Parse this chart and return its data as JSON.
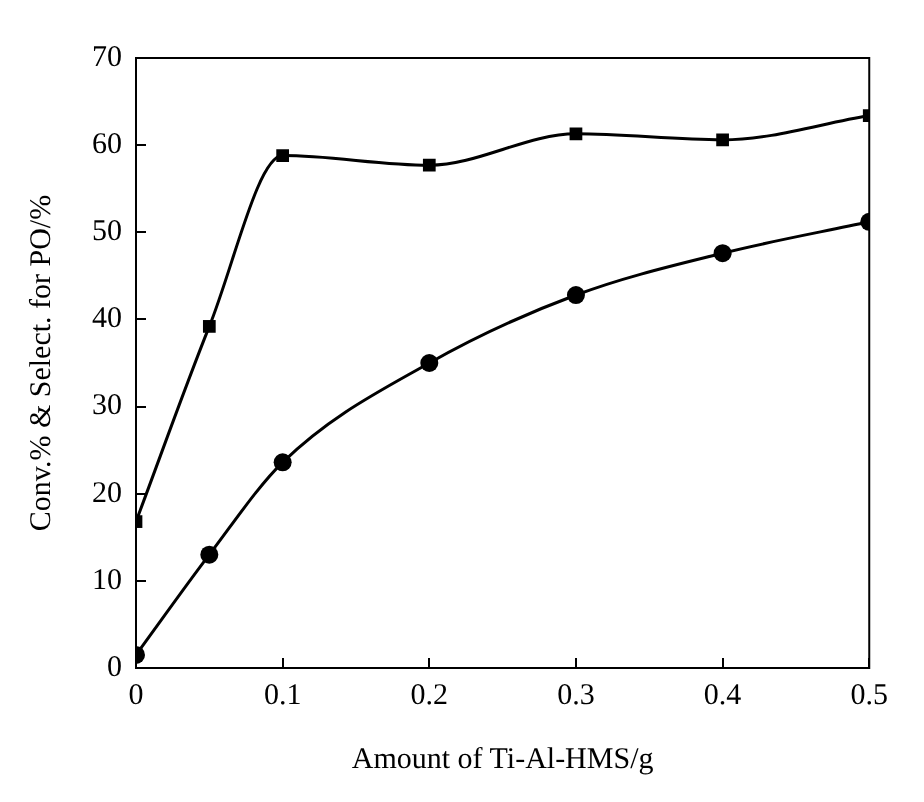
{
  "chart_data": {
    "type": "line",
    "xlabel": "Amount of Ti-Al-HMS/g",
    "ylabel": "Conv.% & Select. for PO/%",
    "x": [
      0,
      0.05,
      0.1,
      0.2,
      0.3,
      0.4,
      0.5
    ],
    "series": [
      {
        "color": "#000000",
        "marker": "square",
        "values": [
          16.8,
          39.2,
          58.8,
          57.7,
          61.3,
          60.6,
          63.4
        ]
      },
      {
        "color": "#000000",
        "marker": "circle",
        "values": [
          1.5,
          13,
          23.6,
          35,
          42.8,
          47.6,
          51.2
        ]
      }
    ],
    "xlim": [
      0,
      0.5
    ],
    "xticks": [
      0,
      0.1,
      0.2,
      0.3,
      0.4,
      0.5
    ],
    "ylim": [
      0,
      70
    ],
    "yticks": [
      0,
      10,
      20,
      30,
      40,
      50,
      60,
      70
    ],
    "grid": false,
    "legend": false,
    "line_style": "solid"
  }
}
